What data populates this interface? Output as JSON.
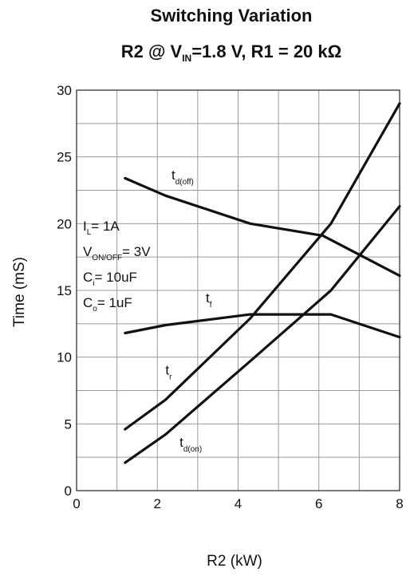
{
  "chart_data": {
    "type": "line",
    "title": "Switching Variation",
    "subtitle": {
      "prefix": "R2 @ V",
      "prefix_sub": "IN",
      "suffix": "=1.8 V, R1 = 20 kΩ"
    },
    "xlabel": "R2 (kW)",
    "ylabel": "Time (mS)",
    "xlim": [
      0,
      8
    ],
    "ylim": [
      0,
      30
    ],
    "xticks": [
      0,
      2,
      4,
      6,
      8
    ],
    "yticks": [
      0,
      5,
      10,
      15,
      20,
      25,
      30
    ],
    "x_minor_step": 1,
    "y_minor_step": 2.5,
    "grid": true,
    "series": [
      {
        "name": "td(off)",
        "points": [
          [
            1.2,
            23.4
          ],
          [
            2.2,
            22.1
          ],
          [
            4.3,
            20.0
          ],
          [
            6.1,
            19.1
          ],
          [
            8.0,
            16.1
          ]
        ]
      },
      {
        "name": "tf",
        "points": [
          [
            1.2,
            11.8
          ],
          [
            2.2,
            12.4
          ],
          [
            4.3,
            13.2
          ],
          [
            6.3,
            13.2
          ],
          [
            8.0,
            11.5
          ]
        ]
      },
      {
        "name": "tr",
        "points": [
          [
            1.2,
            4.6
          ],
          [
            2.2,
            6.8
          ],
          [
            4.3,
            12.9
          ],
          [
            6.3,
            20.0
          ],
          [
            8.0,
            29.0
          ]
        ]
      },
      {
        "name": "td(on)",
        "points": [
          [
            1.2,
            2.1
          ],
          [
            2.2,
            4.2
          ],
          [
            4.3,
            9.7
          ],
          [
            6.3,
            15.0
          ],
          [
            8.0,
            21.3
          ]
        ]
      }
    ],
    "series_labels": [
      {
        "main": "t",
        "sub": "d(off)",
        "x": 2.35,
        "y": 23.3
      },
      {
        "main": "t",
        "sub": "f",
        "x": 3.2,
        "y": 14.1
      },
      {
        "main": "t",
        "sub": "r",
        "x": 2.2,
        "y": 8.7
      },
      {
        "main": "t",
        "sub": "d(on)",
        "x": 2.55,
        "y": 3.3
      }
    ],
    "annotations": [
      {
        "main": "I",
        "sub": "L",
        "rest": "= 1A"
      },
      {
        "main": "V",
        "sub": "ON/OFF",
        "rest": "= 3V"
      },
      {
        "main": "C",
        "sub": "i",
        "rest": "= 10uF"
      },
      {
        "main": "C",
        "sub": "o",
        "rest": "= 1uF"
      }
    ]
  }
}
